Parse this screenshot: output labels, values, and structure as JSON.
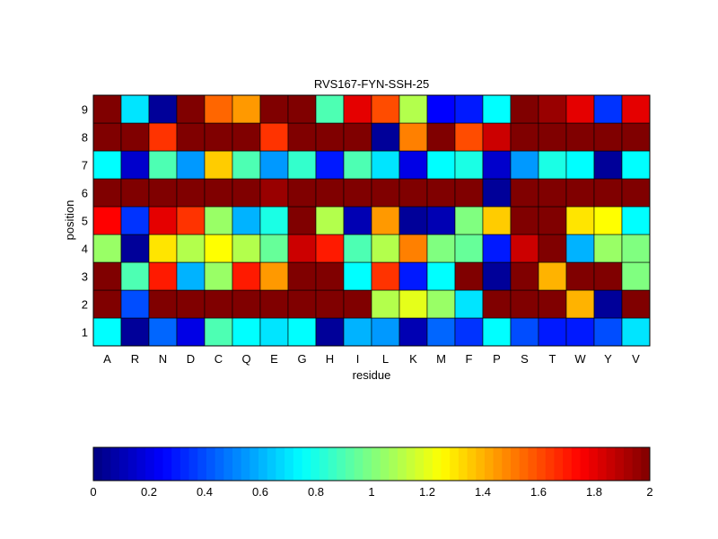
{
  "chart_data": {
    "type": "heatmap",
    "title": "RVS167-FYN-SSH-25",
    "xlabel": "residue",
    "ylabel": "position",
    "x_categories": [
      "A",
      "R",
      "N",
      "D",
      "C",
      "Q",
      "E",
      "G",
      "H",
      "I",
      "L",
      "K",
      "M",
      "F",
      "P",
      "S",
      "T",
      "W",
      "Y",
      "V"
    ],
    "y_categories": [
      "1",
      "2",
      "3",
      "4",
      "5",
      "6",
      "7",
      "8",
      "9"
    ],
    "values": [
      [
        0.75,
        0.05,
        0.45,
        0.2,
        0.9,
        0.75,
        0.7,
        0.75,
        0.05,
        0.6,
        0.55,
        0.1,
        0.45,
        0.35,
        0.75,
        0.4,
        0.3,
        0.3,
        0.4,
        0.7
      ],
      [
        2.0,
        0.4,
        2.0,
        2.0,
        2.0,
        2.0,
        2.0,
        2.0,
        2.0,
        2.0,
        1.1,
        1.2,
        1.05,
        0.7,
        2.0,
        2.0,
        2.0,
        1.4,
        0.05,
        2.0
      ],
      [
        2.0,
        0.9,
        1.7,
        0.6,
        1.05,
        1.7,
        1.45,
        2.0,
        2.0,
        0.75,
        1.65,
        0.3,
        0.75,
        2.0,
        0.05,
        2.0,
        1.4,
        2.0,
        2.0,
        1.0
      ],
      [
        1.05,
        0.05,
        1.3,
        1.1,
        1.25,
        1.1,
        0.95,
        1.85,
        1.7,
        0.9,
        1.1,
        1.5,
        1.0,
        0.95,
        0.3,
        1.85,
        2.0,
        0.6,
        1.05,
        1.0
      ],
      [
        1.75,
        0.35,
        1.8,
        1.65,
        1.05,
        0.6,
        0.8,
        2.0,
        1.1,
        0.1,
        1.45,
        0.05,
        0.1,
        1.0,
        1.35,
        2.0,
        2.0,
        1.3,
        1.25,
        0.75
      ],
      [
        2.0,
        2.0,
        2.0,
        2.0,
        2.0,
        2.0,
        1.95,
        2.0,
        2.0,
        2.0,
        2.0,
        2.0,
        2.0,
        2.0,
        0.05,
        2.0,
        2.0,
        2.0,
        2.0,
        2.0
      ],
      [
        0.75,
        0.15,
        0.9,
        0.55,
        1.35,
        0.9,
        0.55,
        0.85,
        0.3,
        0.9,
        0.7,
        0.2,
        0.75,
        0.8,
        0.15,
        0.55,
        0.8,
        0.75,
        0.05,
        0.75
      ],
      [
        2.0,
        2.0,
        1.65,
        2.0,
        2.0,
        2.0,
        1.65,
        2.0,
        2.0,
        2.0,
        0.05,
        1.5,
        2.0,
        1.6,
        1.85,
        2.0,
        2.0,
        2.0,
        2.0,
        2.0
      ],
      [
        2.0,
        0.7,
        0.05,
        2.0,
        1.55,
        1.45,
        2.0,
        2.0,
        0.9,
        1.8,
        1.6,
        1.1,
        0.25,
        0.3,
        0.75,
        2.0,
        1.95,
        1.8,
        0.35,
        1.8
      ]
    ],
    "colorbar": {
      "min": 0,
      "max": 2,
      "ticks": [
        "0",
        "0.2",
        "0.4",
        "0.6",
        "0.8",
        "1",
        "1.2",
        "1.4",
        "1.6",
        "1.8",
        "2"
      ],
      "colormap": "jet"
    }
  }
}
